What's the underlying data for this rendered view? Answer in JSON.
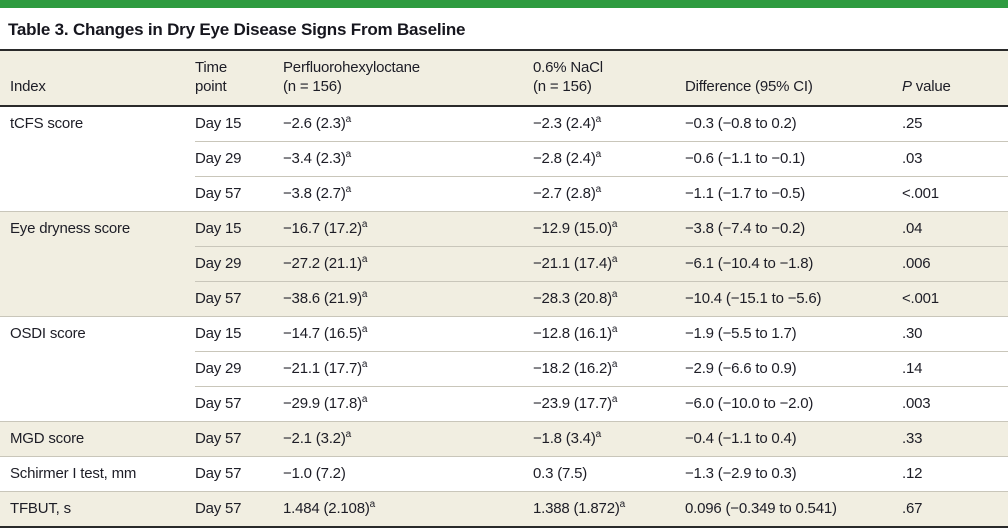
{
  "title": "Table 3. Changes in Dry Eye Disease Signs From Baseline",
  "accent_color": "#2e9b40",
  "shade_color": "#f1eee1",
  "columns": {
    "index": {
      "label": "Index"
    },
    "time": {
      "line1": "Time",
      "line2": "point"
    },
    "pfho": {
      "line1": "Perfluorohexyloctane",
      "line2": "(n = 156)"
    },
    "nacl": {
      "line1": "0.6% NaCl",
      "line2": "(n = 156)"
    },
    "difference": {
      "label": "Difference (95% CI)"
    },
    "pvalue": {
      "italic": "P",
      "rest": " value"
    }
  },
  "rows": [
    {
      "index": "tCFS score",
      "rowspan": 3,
      "shaded": false,
      "time": "Day 15",
      "pfho": "−2.6 (2.3)",
      "pfho_sup": "a",
      "nacl": "−2.3 (2.4)",
      "nacl_sup": "a",
      "difference": "−0.3 (−0.8 to 0.2)",
      "pvalue": ".25"
    },
    {
      "shaded": false,
      "time": "Day 29",
      "pfho": "−3.4 (2.3)",
      "pfho_sup": "a",
      "nacl": "−2.8 (2.4)",
      "nacl_sup": "a",
      "difference": "−0.6 (−1.1 to −0.1)",
      "pvalue": ".03"
    },
    {
      "shaded": false,
      "time": "Day 57",
      "pfho": "−3.8 (2.7)",
      "pfho_sup": "a",
      "nacl": "−2.7 (2.8)",
      "nacl_sup": "a",
      "difference": "−1.1 (−1.7 to −0.5)",
      "pvalue": "<.001"
    },
    {
      "index": "Eye dryness score",
      "rowspan": 3,
      "shaded": true,
      "time": "Day 15",
      "pfho": "−16.7 (17.2)",
      "pfho_sup": "a",
      "nacl": "−12.9 (15.0)",
      "nacl_sup": "a",
      "difference": "−3.8 (−7.4 to −0.2)",
      "pvalue": ".04"
    },
    {
      "shaded": true,
      "time": "Day 29",
      "pfho": "−27.2 (21.1)",
      "pfho_sup": "a",
      "nacl": "−21.1 (17.4)",
      "nacl_sup": "a",
      "difference": "−6.1 (−10.4 to −1.8)",
      "pvalue": ".006"
    },
    {
      "shaded": true,
      "time": "Day 57",
      "pfho": "−38.6 (21.9)",
      "pfho_sup": "a",
      "nacl": "−28.3 (20.8)",
      "nacl_sup": "a",
      "difference": "−10.4 (−15.1 to −5.6)",
      "pvalue": "<.001"
    },
    {
      "index": "OSDI score",
      "rowspan": 3,
      "shaded": false,
      "time": "Day 15",
      "pfho": "−14.7 (16.5)",
      "pfho_sup": "a",
      "nacl": "−12.8 (16.1)",
      "nacl_sup": "a",
      "difference": "−1.9 (−5.5 to 1.7)",
      "pvalue": ".30"
    },
    {
      "shaded": false,
      "time": "Day 29",
      "pfho": "−21.1 (17.7)",
      "pfho_sup": "a",
      "nacl": "−18.2 (16.2)",
      "nacl_sup": "a",
      "difference": "−2.9 (−6.6 to 0.9)",
      "pvalue": ".14"
    },
    {
      "shaded": false,
      "time": "Day 57",
      "pfho": "−29.9 (17.8)",
      "pfho_sup": "a",
      "nacl": "−23.9 (17.7)",
      "nacl_sup": "a",
      "difference": "−6.0 (−10.0 to −2.0)",
      "pvalue": ".003"
    },
    {
      "index": "MGD score",
      "rowspan": 1,
      "shaded": true,
      "time": "Day 57",
      "pfho": "−2.1 (3.2)",
      "pfho_sup": "a",
      "nacl": "−1.8 (3.4)",
      "nacl_sup": "a",
      "difference": "−0.4 (−1.1 to 0.4)",
      "pvalue": ".33"
    },
    {
      "index": "Schirmer I test, mm",
      "rowspan": 1,
      "shaded": false,
      "time": "Day 57",
      "pfho": "−1.0 (7.2)",
      "nacl": "0.3 (7.5)",
      "difference": "−1.3 (−2.9 to 0.3)",
      "pvalue": ".12"
    },
    {
      "index": "TFBUT, s",
      "rowspan": 1,
      "shaded": true,
      "time": "Day 57",
      "pfho": "1.484 (2.108)",
      "pfho_sup": "a",
      "nacl": "1.388 (1.872)",
      "nacl_sup": "a",
      "difference": "0.096 (−0.349 to 0.541)",
      "pvalue": ".67"
    }
  ]
}
